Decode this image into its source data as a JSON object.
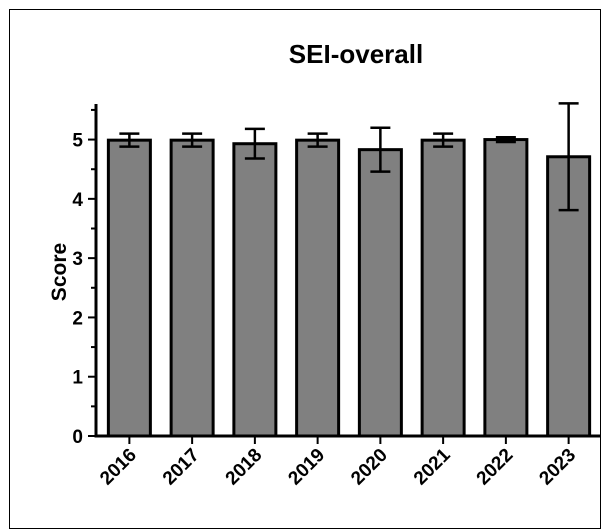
{
  "chart_data": {
    "type": "bar",
    "title": "SEI-overall",
    "xlabel": "",
    "ylabel": "Score",
    "ylim": [
      0,
      5.6
    ],
    "yticks": [
      0,
      1,
      2,
      3,
      4,
      5
    ],
    "grid": false,
    "categories": [
      "2016",
      "2017",
      "2018",
      "2019",
      "2020",
      "2021",
      "2022",
      "2023"
    ],
    "values": [
      4.99,
      4.99,
      4.93,
      4.99,
      4.83,
      4.99,
      5.0,
      4.71
    ],
    "errors": [
      0.11,
      0.11,
      0.25,
      0.11,
      0.37,
      0.11,
      0.04,
      0.9
    ],
    "colors": {
      "bar": "#808080",
      "stroke": "#000000"
    }
  }
}
